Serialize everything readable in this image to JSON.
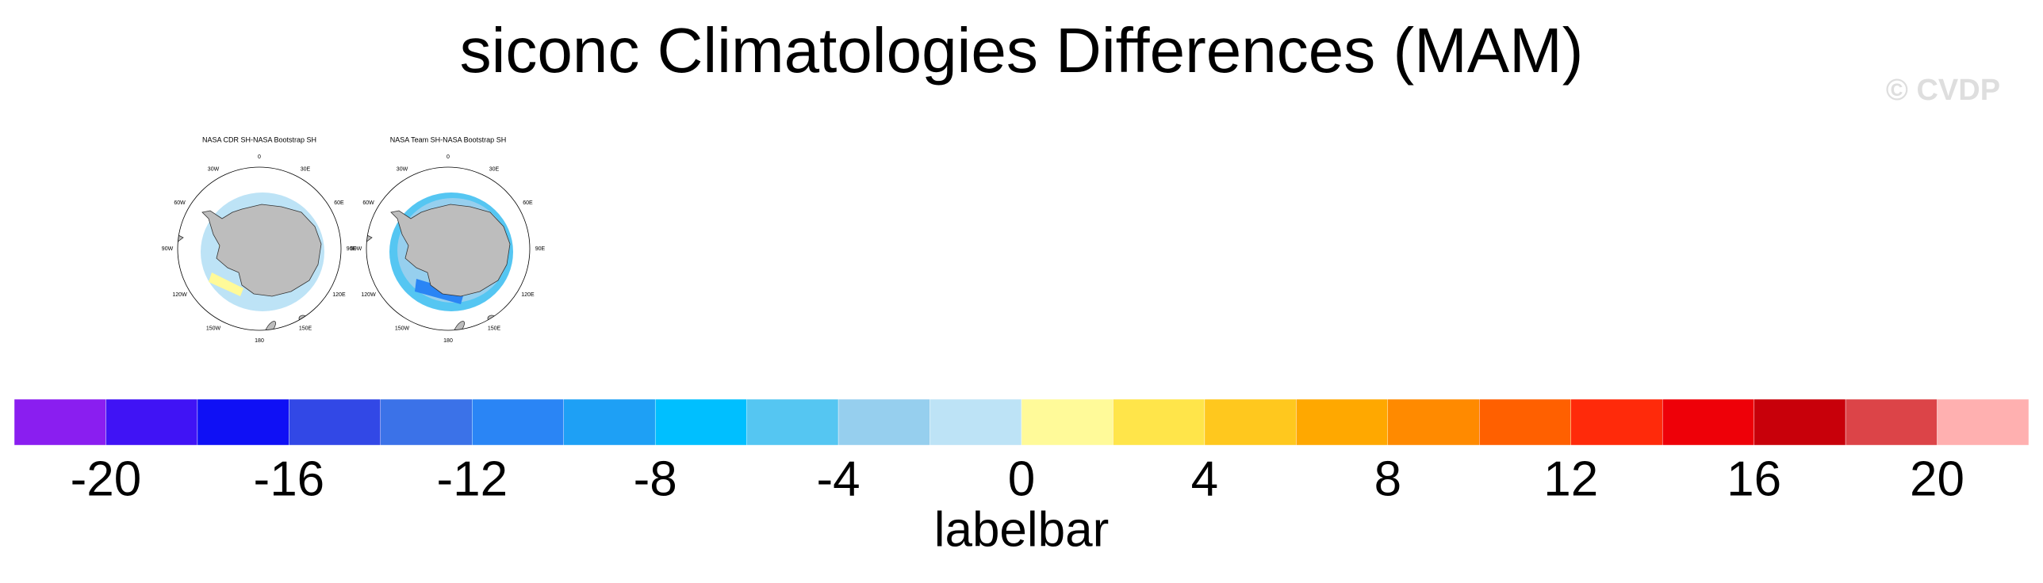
{
  "title": "siconc Climatologies Differences (MAM)",
  "watermark": "© CVDP",
  "maps": [
    {
      "title": "NASA CDR SH-NASA Bootstrap SH",
      "lon_labels": [
        "0",
        "30E",
        "60E",
        "90E",
        "120E",
        "150E",
        "180",
        "150W",
        "120W",
        "90W",
        "60W",
        "30W"
      ]
    },
    {
      "title": "NASA Team SH-NASA Bootstrap SH",
      "lon_labels": [
        "0",
        "30E",
        "60E",
        "90E",
        "120E",
        "150E",
        "180",
        "150W",
        "120W",
        "90W",
        "60W",
        "30W"
      ]
    }
  ],
  "colorbar": {
    "label": "labelbar",
    "xlim": [
      -22,
      22
    ],
    "bins": [
      -22,
      -20,
      -18,
      -16,
      -14,
      -12,
      -10,
      -8,
      -6,
      -4,
      -2,
      0,
      2,
      4,
      6,
      8,
      10,
      12,
      14,
      16,
      18,
      20,
      22
    ],
    "colors": [
      "#8a1ef0",
      "#4013f5",
      "#0f10f5",
      "#3248e6",
      "#3b72e8",
      "#2a85f5",
      "#1ea0f5",
      "#00bfff",
      "#55c6f2",
      "#96cfee",
      "#bde3f6",
      "#fffa99",
      "#ffe54a",
      "#ffc81e",
      "#ffa800",
      "#ff8a00",
      "#ff6000",
      "#ff2a0a",
      "#ee0008",
      "#c8000a",
      "#dc4448",
      "#ffb0b0"
    ],
    "xticks": [
      -20,
      -16,
      -12,
      -8,
      -4,
      0,
      4,
      8,
      12,
      16,
      20
    ]
  }
}
